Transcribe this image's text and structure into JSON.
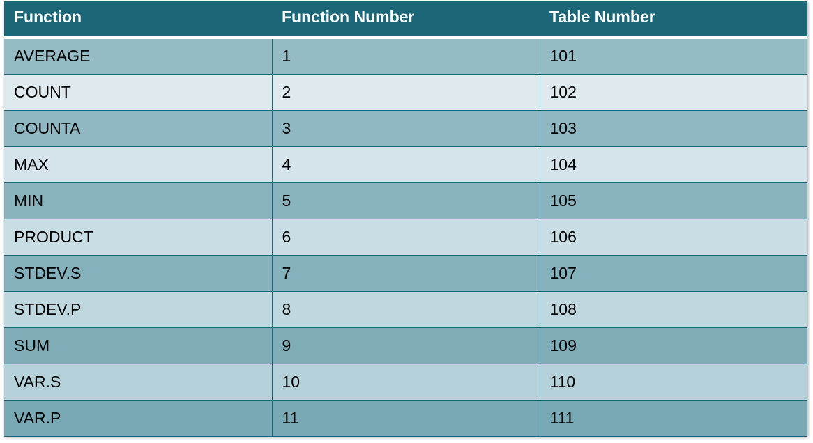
{
  "table": {
    "headers": [
      "Function",
      "Function Number",
      "Table Number"
    ],
    "rows": [
      [
        "AVERAGE",
        "1",
        "101"
      ],
      [
        "COUNT",
        "2",
        "102"
      ],
      [
        "COUNTA",
        "3",
        "103"
      ],
      [
        "MAX",
        "4",
        "104"
      ],
      [
        "MIN",
        "5",
        "105"
      ],
      [
        "PRODUCT",
        "6",
        "106"
      ],
      [
        "STDEV.S",
        "7",
        "107"
      ],
      [
        "STDEV.P",
        "8",
        "108"
      ],
      [
        "SUM",
        "9",
        "109"
      ],
      [
        "VAR.S",
        "10",
        "110"
      ],
      [
        "VAR.P",
        "11",
        "111"
      ]
    ]
  },
  "colors": {
    "header_bg": "#1b6777",
    "header_text": "#ffffff",
    "row_band_dark": [
      "#95bcc5",
      "#8fb8c2",
      "#89b4be",
      "#84b1bb",
      "#7eadb8",
      "#78a9b4"
    ],
    "row_band_light": [
      "#dfeaef",
      "#d4e4ea",
      "#c9dde4",
      "#bfd7df",
      "#b5d1d9"
    ],
    "grid_line": "#1b6777"
  }
}
